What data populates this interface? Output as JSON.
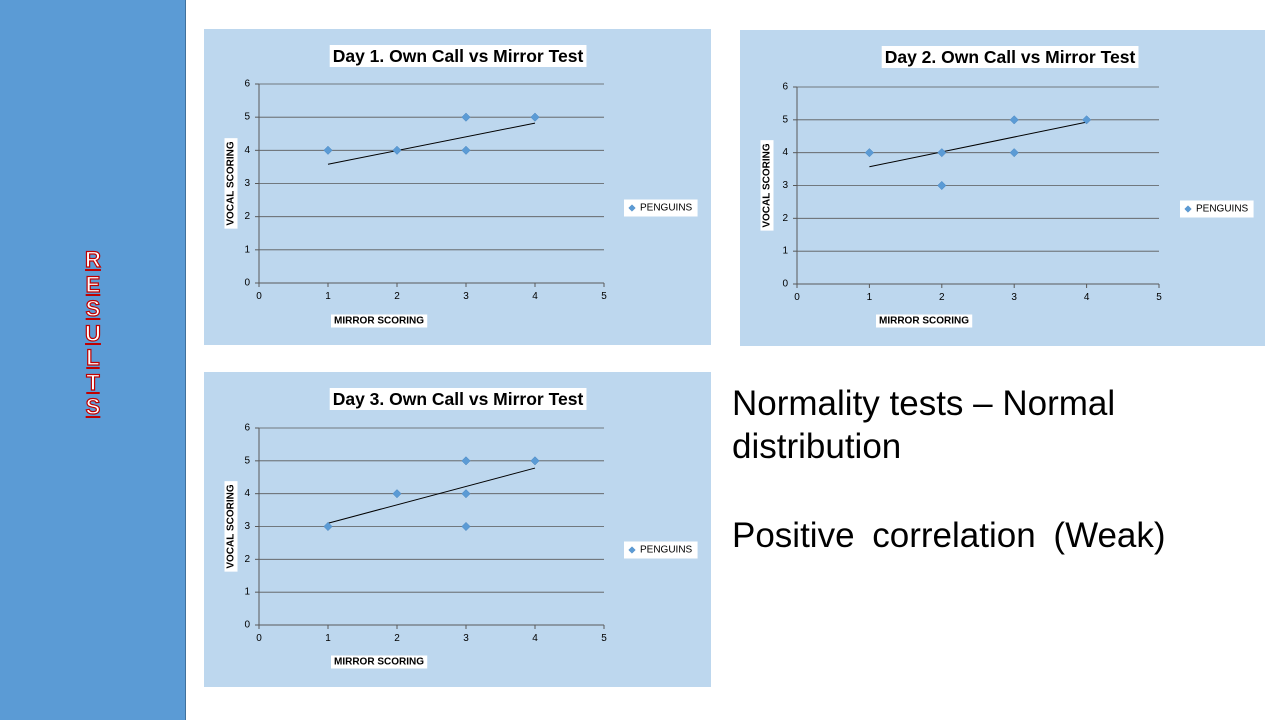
{
  "sidebar": {
    "letters": [
      "R",
      "E",
      "S",
      "U",
      "L",
      "T",
      "S"
    ]
  },
  "notes": {
    "line1": "Normality tests – Normal distribution",
    "line2": "Positive correlation (Weak)"
  },
  "colors": {
    "sidebar": "#5b9bd5",
    "chart_background": "#bdd7ee",
    "marker": "#5b9bd5",
    "trendline": "#000000",
    "letter_outline": "#c00000"
  },
  "chart_data": [
    {
      "type": "scatter",
      "title": "Day 1. Own Call vs Mirror Test",
      "xlabel": "MIRROR SCORING",
      "ylabel": "VOCAL SCORING",
      "xlim": [
        0,
        5
      ],
      "ylim": [
        0,
        6
      ],
      "xticks": [
        0,
        1,
        2,
        3,
        4,
        5
      ],
      "yticks": [
        0,
        1,
        2,
        3,
        4,
        5,
        6
      ],
      "grid": true,
      "legend_position": "right",
      "series": [
        {
          "name": "PENGUINS",
          "x": [
            1,
            2,
            3,
            3,
            4
          ],
          "y": [
            4,
            4,
            5,
            4,
            5
          ]
        }
      ],
      "trendline": {
        "x": [
          1,
          4
        ],
        "y": [
          3.58,
          4.82
        ]
      }
    },
    {
      "type": "scatter",
      "title": "Day 2. Own Call vs Mirror Test",
      "xlabel": "MIRROR SCORING",
      "ylabel": "VOCAL SCORING",
      "xlim": [
        0,
        5
      ],
      "ylim": [
        0,
        6
      ],
      "xticks": [
        0,
        1,
        2,
        3,
        4,
        5
      ],
      "yticks": [
        0,
        1,
        2,
        3,
        4,
        5,
        6
      ],
      "grid": true,
      "legend_position": "right",
      "series": [
        {
          "name": "PENGUINS",
          "x": [
            1,
            2,
            2,
            3,
            3,
            4
          ],
          "y": [
            4,
            4,
            3,
            5,
            4,
            5
          ]
        }
      ],
      "trendline": {
        "x": [
          1,
          4
        ],
        "y": [
          3.57,
          4.93
        ]
      }
    },
    {
      "type": "scatter",
      "title": "Day 3. Own Call vs Mirror Test",
      "xlabel": "MIRROR SCORING",
      "ylabel": "VOCAL SCORING",
      "xlim": [
        0,
        5
      ],
      "ylim": [
        0,
        6
      ],
      "xticks": [
        0,
        1,
        2,
        3,
        4,
        5
      ],
      "yticks": [
        0,
        1,
        2,
        3,
        4,
        5,
        6
      ],
      "grid": true,
      "legend_position": "right",
      "series": [
        {
          "name": "PENGUINS",
          "x": [
            1,
            2,
            3,
            3,
            3,
            4
          ],
          "y": [
            3,
            4,
            5,
            4,
            3,
            5
          ]
        }
      ],
      "trendline": {
        "x": [
          1,
          4
        ],
        "y": [
          3.1,
          4.78
        ]
      }
    }
  ]
}
